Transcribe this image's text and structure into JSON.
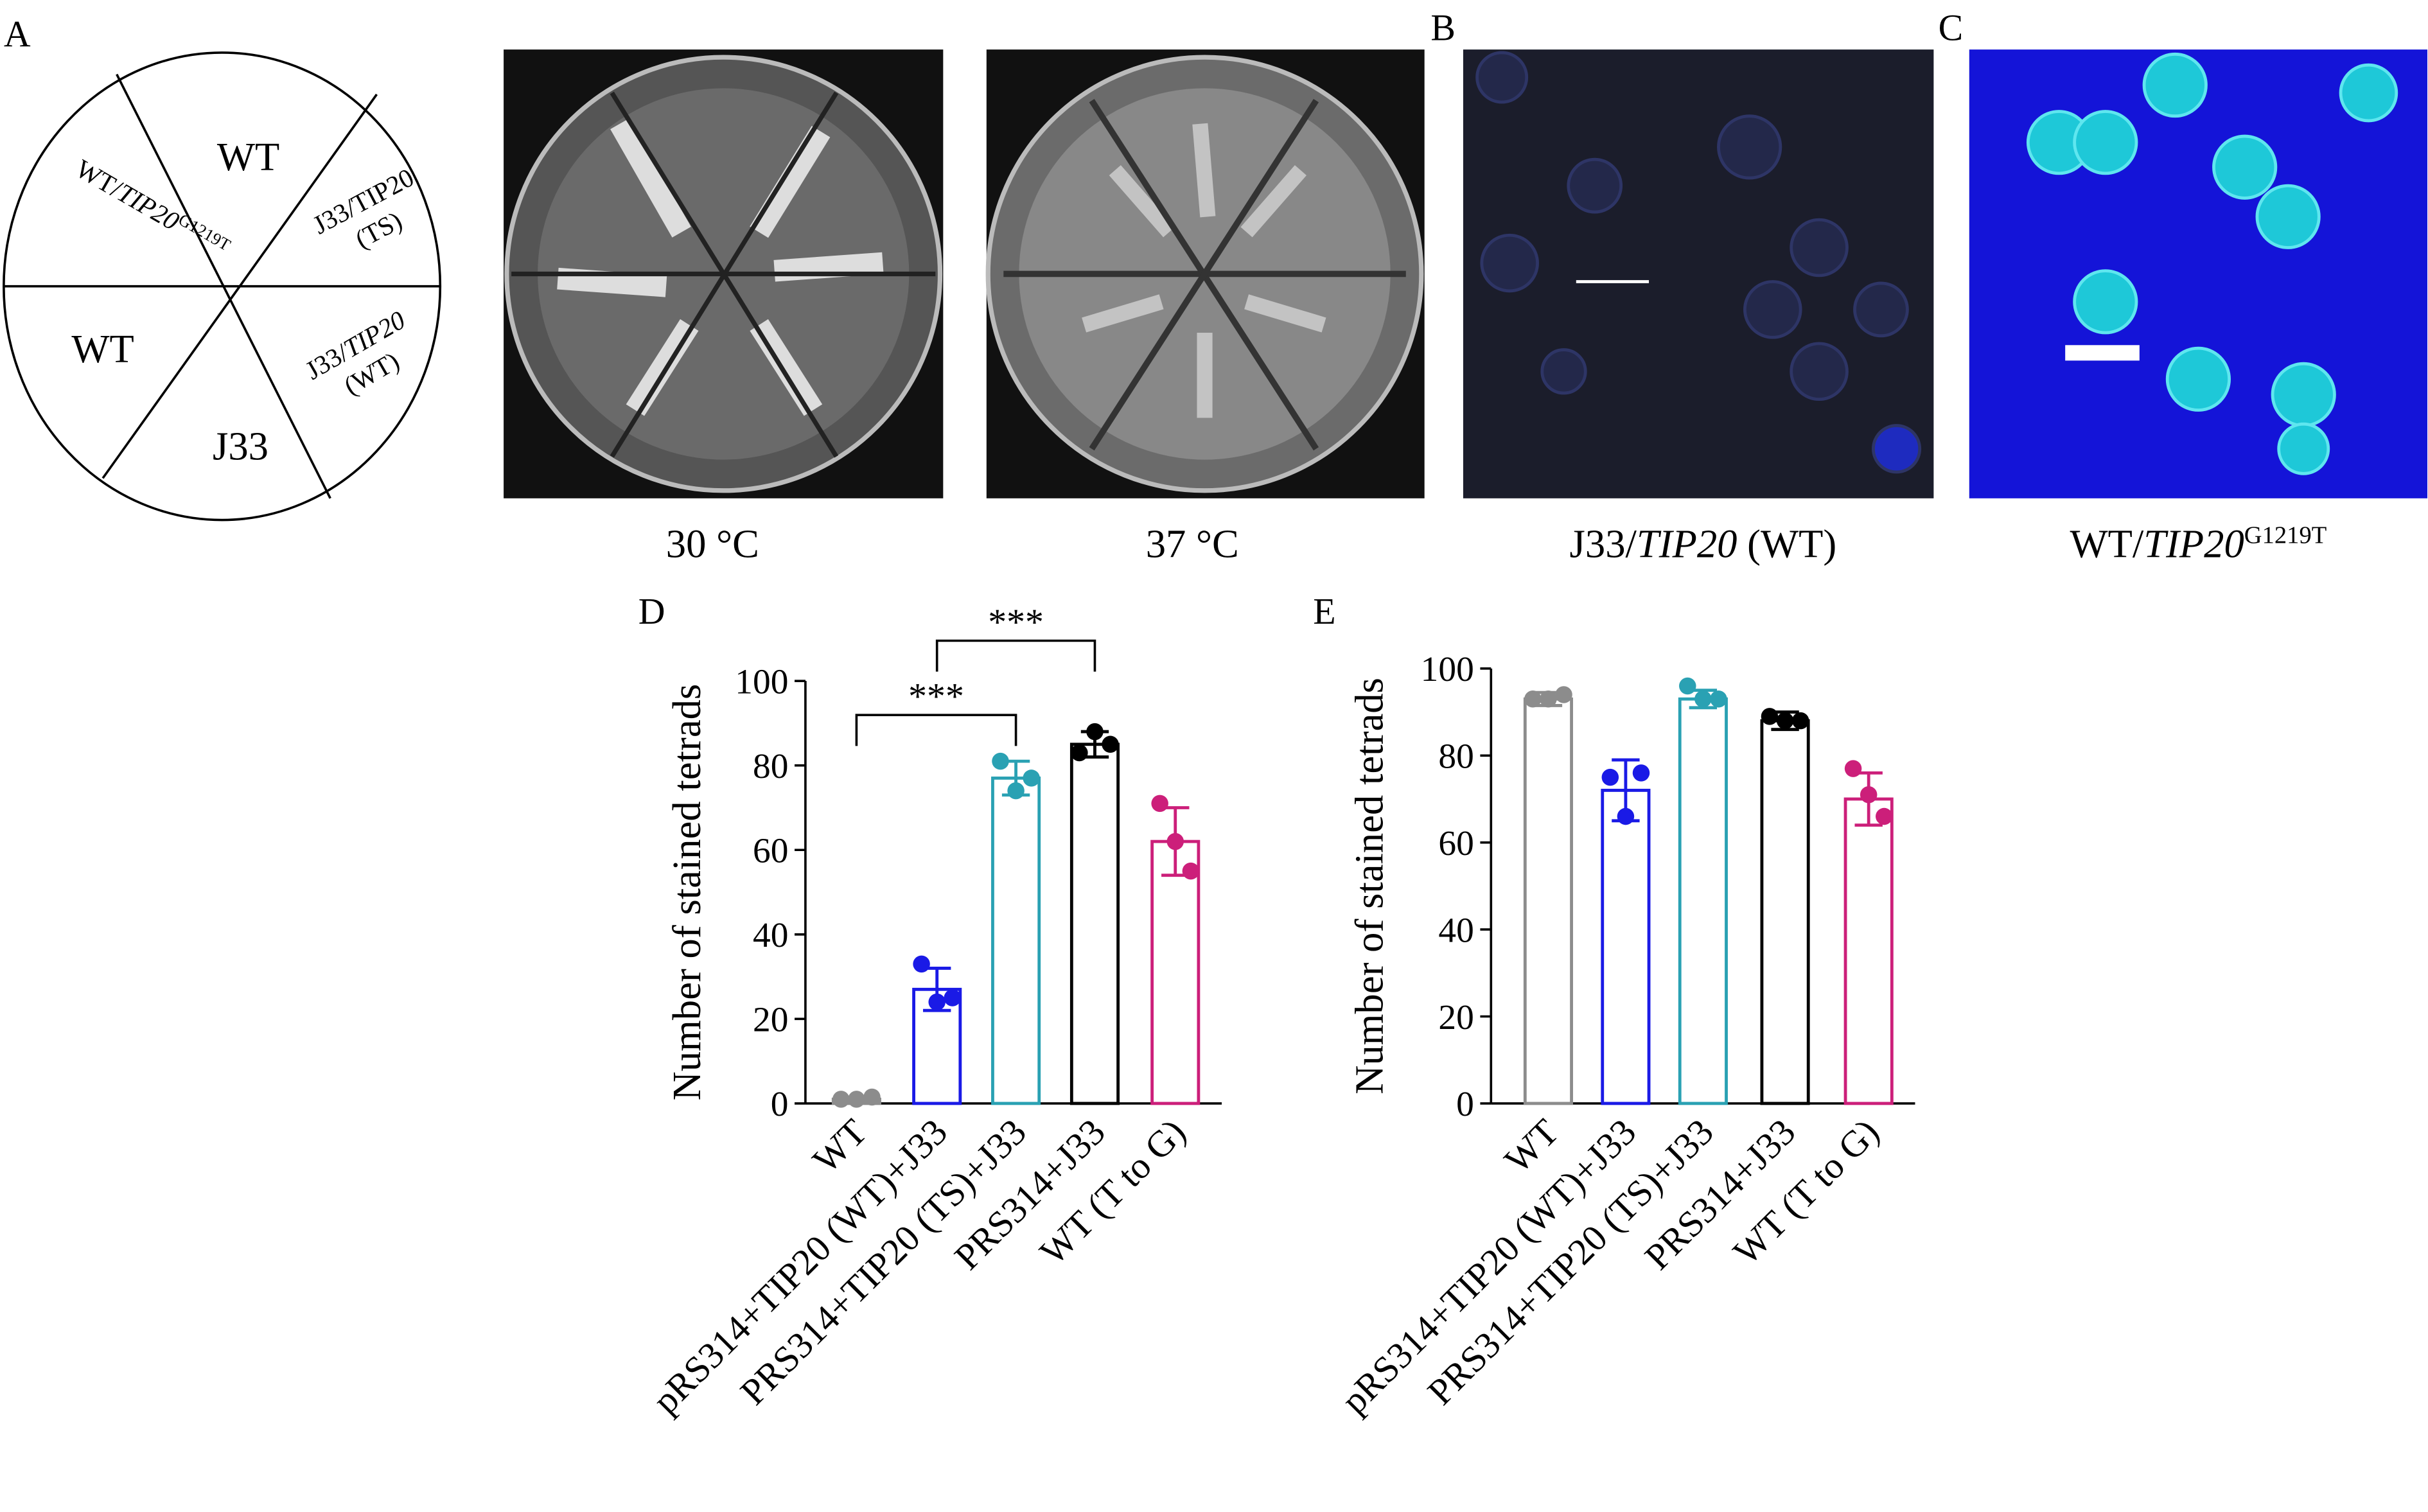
{
  "panel_a": {
    "letter": "A",
    "sectors": [
      "WT",
      "WT",
      "J33"
    ],
    "sector_ts": {
      "prefix": "J33/TIP20",
      "suffix": "(TS)"
    },
    "sector_wt": {
      "prefix": "J33/",
      "italic": "TIP20",
      "suffix": "(WT)"
    },
    "sector_mut": {
      "prefix": "WT/",
      "italic": "TIP20",
      "sup": "G1219T"
    },
    "captions": [
      "30 °C",
      "37 °C"
    ]
  },
  "panel_b": {
    "letter": "B",
    "caption": {
      "prefix": "J33/",
      "italic": "TIP20",
      "suffix": " (WT)"
    }
  },
  "panel_c": {
    "letter": "C",
    "caption": {
      "prefix": "WT/",
      "italic": "TIP20",
      "sup": "G1219T"
    }
  },
  "chart_data": [
    {
      "type": "bar",
      "letter": "D",
      "y_label": "Number of stained tetrads",
      "categories": [
        "WT",
        "pRS314+TIP20 (WT)+J33",
        "PRS314+TIP20 (TS)+J33",
        "PRS314+J33",
        "WT (T to G)"
      ],
      "values": [
        1,
        27,
        77,
        85,
        62
      ],
      "errors": [
        0.5,
        5,
        4,
        3,
        8
      ],
      "points": [
        [
          1,
          1,
          1.5
        ],
        [
          33,
          24,
          25
        ],
        [
          81,
          74,
          77
        ],
        [
          83,
          88,
          85
        ],
        [
          71,
          62,
          55
        ]
      ],
      "colors": [
        "#8c8c8c",
        "#1a1ae6",
        "#2aa1b3",
        "#000000",
        "#cc1f7a"
      ],
      "annotations": [
        "***",
        "***"
      ],
      "ylim": [
        0,
        100
      ],
      "yticks": [
        0,
        20,
        40,
        60,
        80,
        100
      ]
    },
    {
      "type": "bar",
      "letter": "E",
      "y_label": "Number of stained tetrads",
      "categories": [
        "WT",
        "pRS314+TIP20 (WT)+J33",
        "PRS314+TIP20 (TS)+J33",
        "PRS314+J33",
        "WT (T to G)"
      ],
      "values": [
        93,
        72,
        93,
        88,
        70
      ],
      "errors": [
        1.5,
        7,
        2,
        2,
        6
      ],
      "points": [
        [
          93,
          93,
          94
        ],
        [
          75,
          66,
          76
        ],
        [
          96,
          93,
          93
        ],
        [
          89,
          88,
          88
        ],
        [
          77,
          71,
          66
        ]
      ],
      "colors": [
        "#8c8c8c",
        "#1a1ae6",
        "#2aa1b3",
        "#000000",
        "#cc1f7a"
      ],
      "ylim": [
        0,
        100
      ],
      "yticks": [
        0,
        20,
        40,
        60,
        80,
        100
      ]
    }
  ]
}
